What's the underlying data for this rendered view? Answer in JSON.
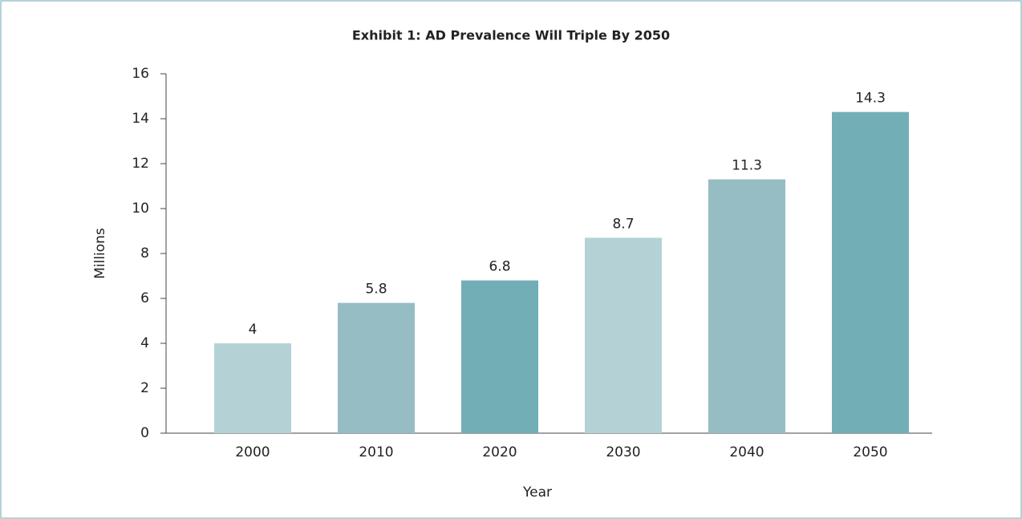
{
  "chart_data": {
    "type": "bar",
    "title": "Exhibit 1: AD Prevalence Will Triple By 2050",
    "x_label": "Year",
    "y_label": "Millions",
    "categories": [
      "2000",
      "2010",
      "2020",
      "2030",
      "2040",
      "2050"
    ],
    "values": [
      4,
      5.8,
      6.8,
      8.7,
      11.3,
      14.3
    ],
    "colors": [
      "#b4d2d6",
      "#95bdc3",
      "#72aeb5",
      "#b4d2d6",
      "#95bdc3",
      "#72aeb5"
    ],
    "ylim": [
      0,
      16
    ],
    "yticks": [
      0,
      2,
      4,
      6,
      8,
      10,
      12,
      14,
      16
    ],
    "grid": false
  }
}
